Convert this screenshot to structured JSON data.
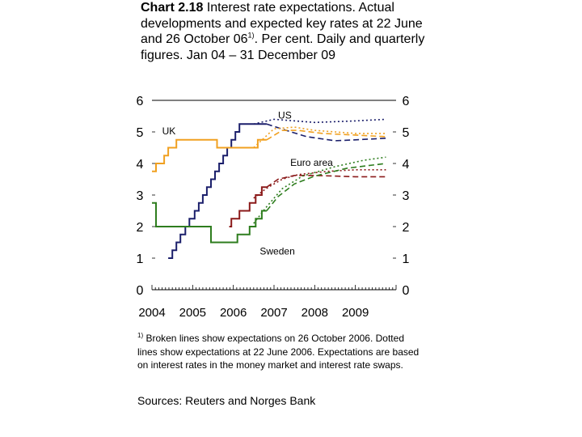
{
  "title": {
    "bold": "Chart 2.18",
    "text_a": " Interest rate expectations. Actual developments and expected key rates at 22 June and 26 October 06",
    "sup": "1)",
    "text_b": ". Per cent. Daily and quarterly figures. Jan 04 – 31 December 09"
  },
  "footnote": {
    "marker": "1)",
    "text": " Broken lines show expectations on 26 October 2006. Dotted lines show expectations at 22 June 2006. Expectations are based on interest rates in the money market and interest rate swaps."
  },
  "sources": "Sources: Reuters and Norges Bank",
  "chart_data": {
    "type": "line",
    "x_unit": "year",
    "xlim": [
      2004,
      2010
    ],
    "ylim": [
      0,
      6
    ],
    "y_ticks": [
      "0",
      "1",
      "2",
      "3",
      "4",
      "5",
      "6"
    ],
    "x_tick_labels": [
      "2004",
      "2005",
      "2006",
      "2007",
      "2008",
      "2009"
    ],
    "x_tick_values": [
      2004,
      2005,
      2006,
      2007,
      2008,
      2009
    ],
    "gridlines": false,
    "series_labels": [
      {
        "text": "US",
        "x": 2007.1,
        "y": 5.55
      },
      {
        "text": "UK",
        "x": 2004.25,
        "y": 5.05
      },
      {
        "text": "Euro area",
        "x": 2007.4,
        "y": 4.05
      },
      {
        "text": "Sweden",
        "x": 2006.65,
        "y": 1.25
      }
    ],
    "series": [
      {
        "name": "US",
        "color": "#1b1f6b",
        "style": "solid",
        "points": [
          [
            2004.4,
            1.0
          ],
          [
            2004.5,
            1.0
          ],
          [
            2004.5,
            1.25
          ],
          [
            2004.6,
            1.25
          ],
          [
            2004.6,
            1.5
          ],
          [
            2004.7,
            1.5
          ],
          [
            2004.7,
            1.75
          ],
          [
            2004.82,
            1.75
          ],
          [
            2004.82,
            2.0
          ],
          [
            2004.92,
            2.0
          ],
          [
            2004.92,
            2.25
          ],
          [
            2005.05,
            2.25
          ],
          [
            2005.05,
            2.5
          ],
          [
            2005.15,
            2.5
          ],
          [
            2005.15,
            2.75
          ],
          [
            2005.25,
            2.75
          ],
          [
            2005.25,
            3.0
          ],
          [
            2005.35,
            3.0
          ],
          [
            2005.35,
            3.25
          ],
          [
            2005.45,
            3.25
          ],
          [
            2005.45,
            3.5
          ],
          [
            2005.55,
            3.5
          ],
          [
            2005.55,
            3.75
          ],
          [
            2005.65,
            3.75
          ],
          [
            2005.65,
            4.0
          ],
          [
            2005.75,
            4.0
          ],
          [
            2005.75,
            4.25
          ],
          [
            2005.85,
            4.25
          ],
          [
            2005.85,
            4.5
          ],
          [
            2005.95,
            4.5
          ],
          [
            2005.95,
            4.75
          ],
          [
            2006.05,
            4.75
          ],
          [
            2006.05,
            5.0
          ],
          [
            2006.15,
            5.0
          ],
          [
            2006.15,
            5.25
          ],
          [
            2006.45,
            5.25
          ],
          [
            2006.82,
            5.25
          ]
        ]
      },
      {
        "name": "US expectations 22 June 2006",
        "color": "#1b1f6b",
        "style": "dotted",
        "points": [
          [
            2006.5,
            5.25
          ],
          [
            2007.0,
            5.4
          ],
          [
            2008.0,
            5.3
          ],
          [
            2009.0,
            5.35
          ],
          [
            2009.75,
            5.4
          ]
        ]
      },
      {
        "name": "US expectations 26 October 2006",
        "color": "#1b1f6b",
        "style": "dashed",
        "points": [
          [
            2006.82,
            5.25
          ],
          [
            2007.3,
            5.05
          ],
          [
            2007.8,
            4.85
          ],
          [
            2008.5,
            4.72
          ],
          [
            2009.0,
            4.75
          ],
          [
            2009.75,
            4.8
          ]
        ]
      },
      {
        "name": "UK",
        "color": "#f0a020",
        "style": "solid",
        "points": [
          [
            2004.0,
            3.75
          ],
          [
            2004.1,
            3.75
          ],
          [
            2004.1,
            4.0
          ],
          [
            2004.3,
            4.0
          ],
          [
            2004.3,
            4.25
          ],
          [
            2004.4,
            4.25
          ],
          [
            2004.4,
            4.5
          ],
          [
            2004.6,
            4.5
          ],
          [
            2004.6,
            4.75
          ],
          [
            2005.6,
            4.75
          ],
          [
            2005.6,
            4.5
          ],
          [
            2006.6,
            4.5
          ],
          [
            2006.6,
            4.75
          ],
          [
            2006.82,
            4.75
          ]
        ]
      },
      {
        "name": "UK expectations 22 June 2006",
        "color": "#f0a020",
        "style": "dotted",
        "points": [
          [
            2006.5,
            4.5
          ],
          [
            2007.0,
            5.1
          ],
          [
            2007.5,
            5.15
          ],
          [
            2008.0,
            5.05
          ],
          [
            2009.0,
            4.95
          ],
          [
            2009.75,
            4.95
          ]
        ]
      },
      {
        "name": "UK expectations 26 October 2006",
        "color": "#f0a020",
        "style": "dashed",
        "points": [
          [
            2006.82,
            4.75
          ],
          [
            2007.2,
            5.05
          ],
          [
            2007.6,
            5.05
          ],
          [
            2008.2,
            4.95
          ],
          [
            2009.0,
            4.9
          ],
          [
            2009.75,
            4.85
          ]
        ]
      },
      {
        "name": "Euro area",
        "color": "#8b1a1a",
        "style": "solid",
        "points": [
          [
            2005.9,
            2.0
          ],
          [
            2005.95,
            2.0
          ],
          [
            2005.95,
            2.25
          ],
          [
            2006.15,
            2.25
          ],
          [
            2006.15,
            2.5
          ],
          [
            2006.4,
            2.5
          ],
          [
            2006.4,
            2.75
          ],
          [
            2006.55,
            2.75
          ],
          [
            2006.55,
            3.0
          ],
          [
            2006.7,
            3.0
          ],
          [
            2006.7,
            3.25
          ],
          [
            2006.82,
            3.25
          ]
        ]
      },
      {
        "name": "Euro area expectations 22 June 2006",
        "color": "#8b1a1a",
        "style": "dotted",
        "points": [
          [
            2006.5,
            2.9
          ],
          [
            2006.8,
            3.2
          ],
          [
            2007.2,
            3.5
          ],
          [
            2007.6,
            3.65
          ],
          [
            2008.3,
            3.75
          ],
          [
            2009.0,
            3.8
          ],
          [
            2009.75,
            3.8
          ]
        ]
      },
      {
        "name": "Euro area expectations 26 October 2006",
        "color": "#8b1a1a",
        "style": "dashed",
        "points": [
          [
            2006.82,
            3.25
          ],
          [
            2007.1,
            3.5
          ],
          [
            2007.5,
            3.62
          ],
          [
            2008.0,
            3.62
          ],
          [
            2009.0,
            3.58
          ],
          [
            2009.75,
            3.58
          ]
        ]
      },
      {
        "name": "Sweden",
        "color": "#2e7d1e",
        "style": "solid",
        "points": [
          [
            2004.0,
            2.75
          ],
          [
            2004.1,
            2.75
          ],
          [
            2004.1,
            2.0
          ],
          [
            2005.45,
            2.0
          ],
          [
            2005.45,
            1.5
          ],
          [
            2006.1,
            1.5
          ],
          [
            2006.1,
            1.75
          ],
          [
            2006.4,
            1.75
          ],
          [
            2006.4,
            2.0
          ],
          [
            2006.55,
            2.0
          ],
          [
            2006.55,
            2.25
          ],
          [
            2006.7,
            2.25
          ],
          [
            2006.7,
            2.5
          ],
          [
            2006.82,
            2.5
          ]
        ]
      },
      {
        "name": "Sweden expectations 22 June 2006",
        "color": "#2e7d1e",
        "style": "dotted",
        "points": [
          [
            2006.5,
            2.1
          ],
          [
            2006.8,
            2.6
          ],
          [
            2007.2,
            3.2
          ],
          [
            2007.7,
            3.6
          ],
          [
            2008.5,
            3.9
          ],
          [
            2009.2,
            4.1
          ],
          [
            2009.75,
            4.2
          ]
        ]
      },
      {
        "name": "Sweden expectations 26 October 2006",
        "color": "#2e7d1e",
        "style": "dashed",
        "points": [
          [
            2006.82,
            2.5
          ],
          [
            2007.1,
            2.95
          ],
          [
            2007.5,
            3.35
          ],
          [
            2008.0,
            3.6
          ],
          [
            2008.8,
            3.85
          ],
          [
            2009.75,
            4.0
          ]
        ]
      }
    ]
  }
}
